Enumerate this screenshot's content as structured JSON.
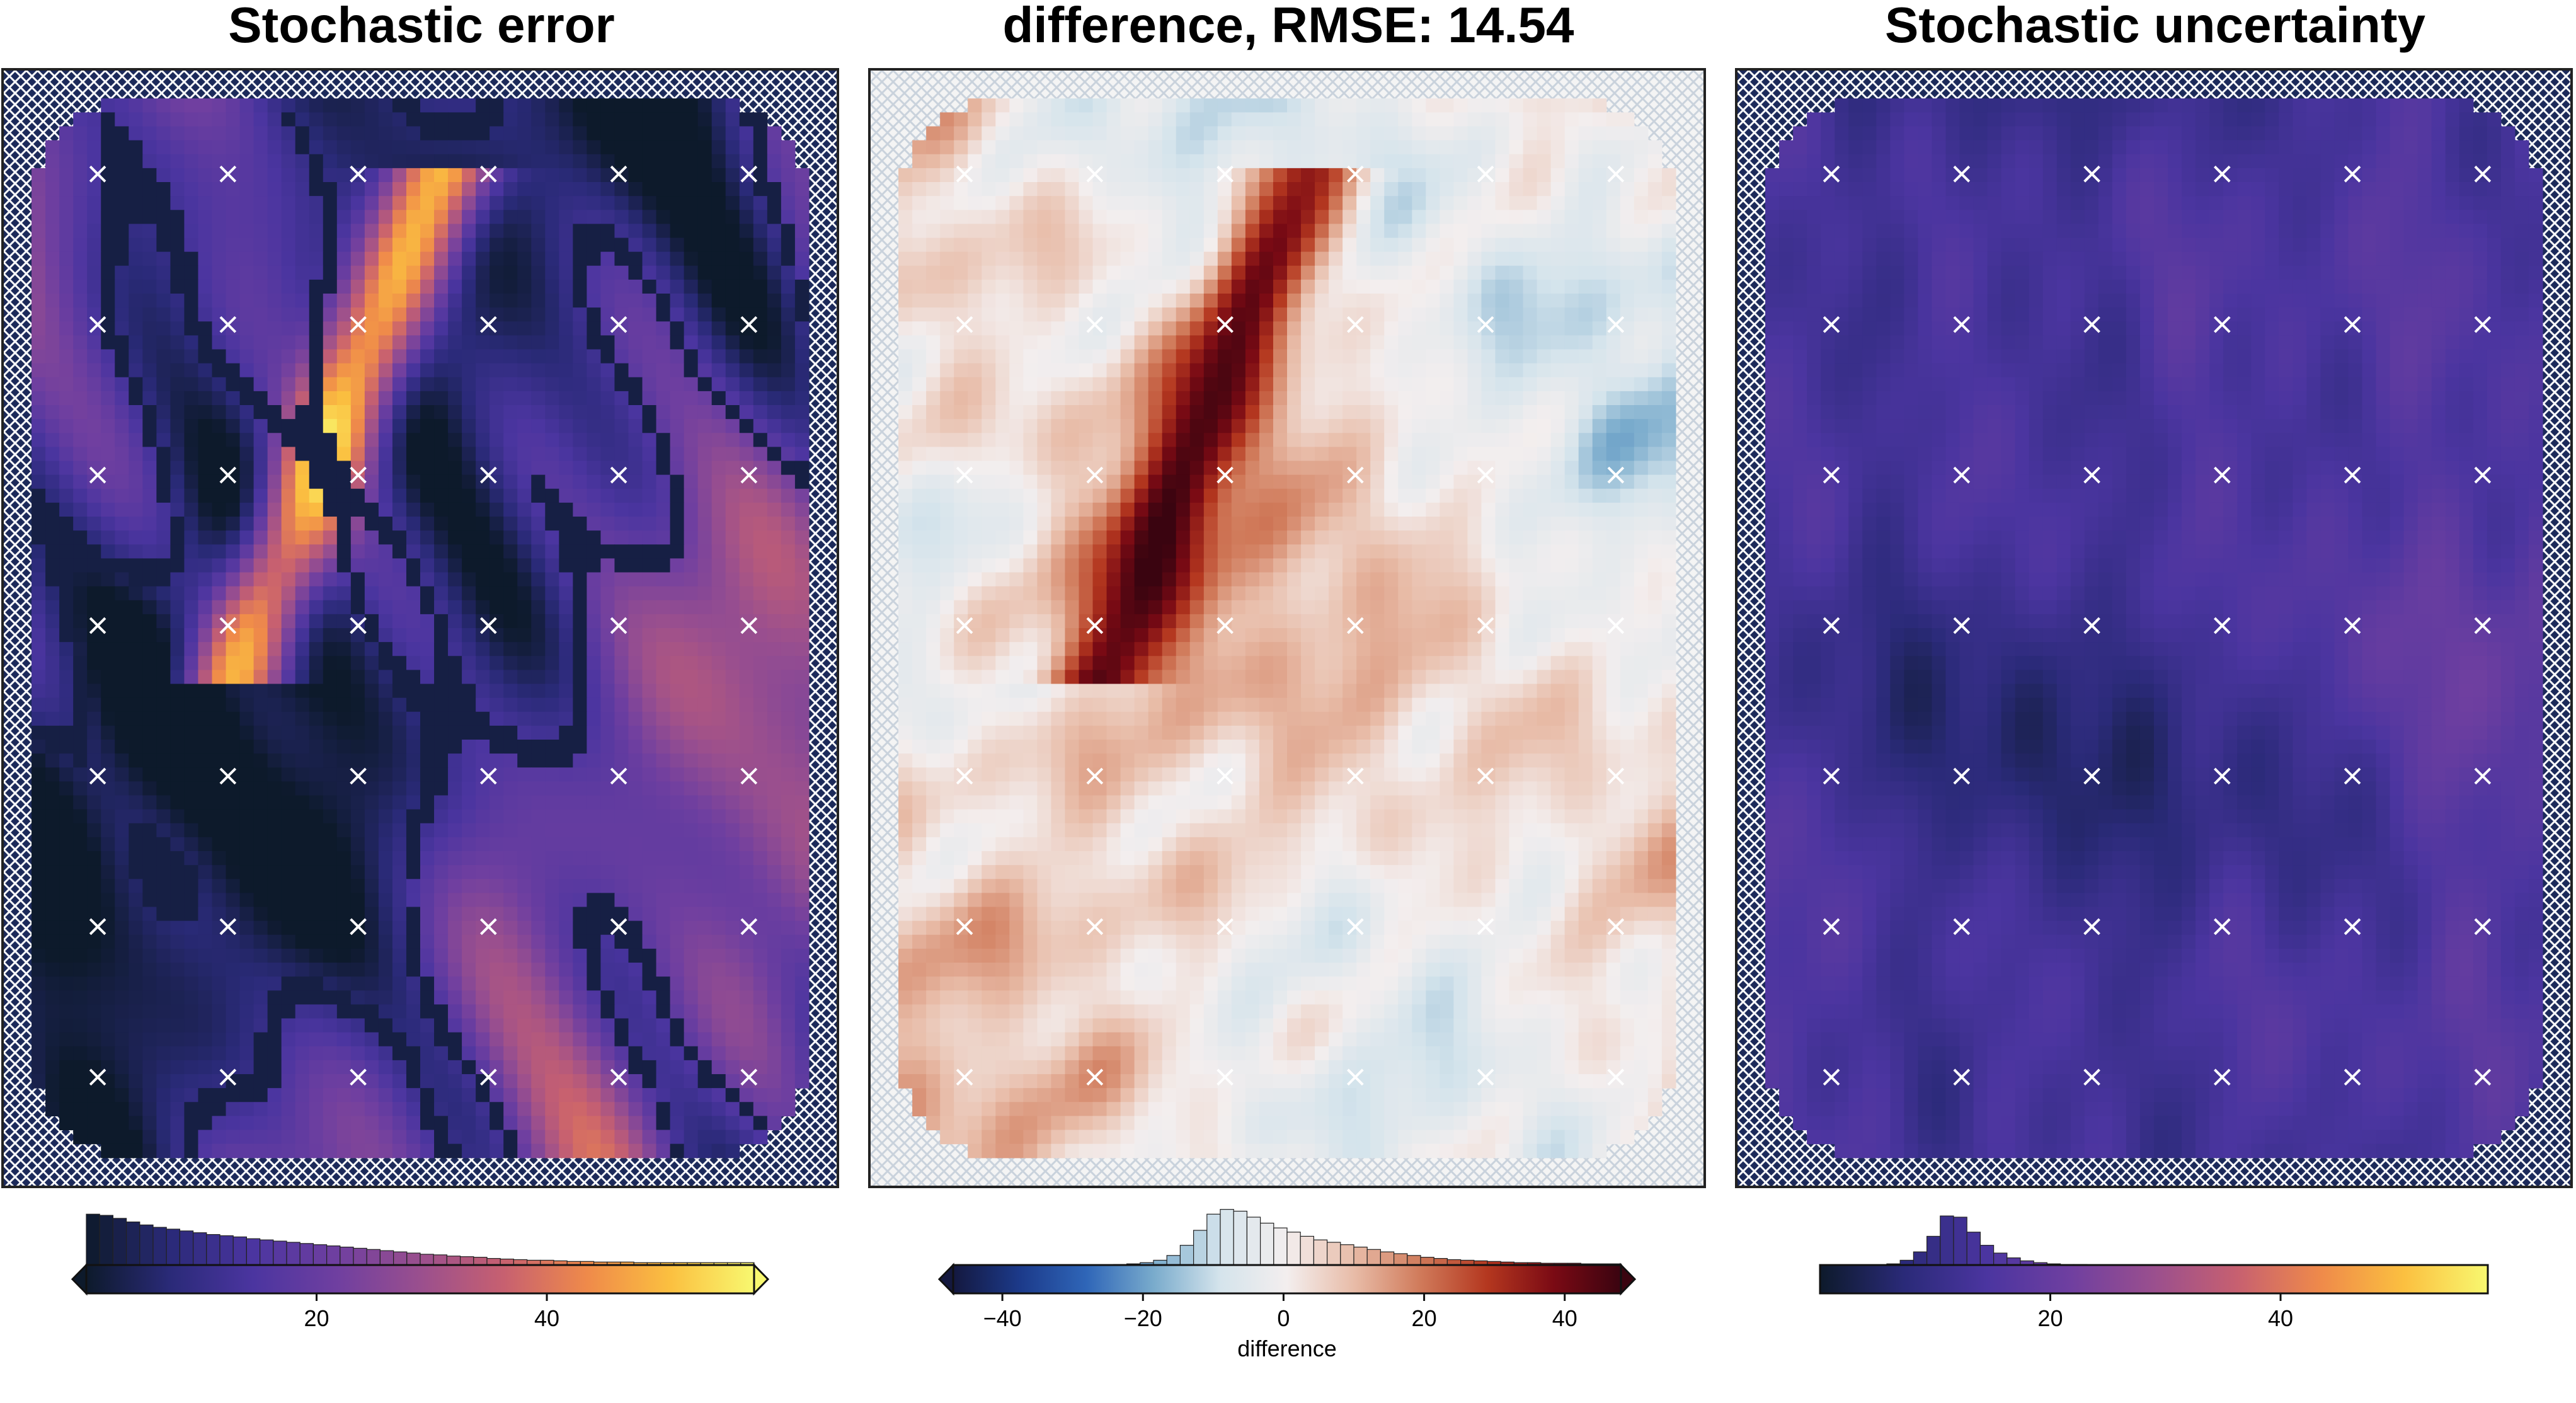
{
  "panels": [
    {
      "id": "stochastic-error",
      "title": "Stochastic error",
      "colormap": [
        "#0d1a2b",
        "#2a2a78",
        "#4b35a0",
        "#6f3fa0",
        "#9a4f8e",
        "#c76070",
        "#ef8a4a",
        "#fbc040",
        "#f8f870"
      ],
      "colorbar": {
        "vmin": 0,
        "vmax": 58,
        "ticks": [
          20,
          40
        ],
        "tick_labels": [
          "20",
          "40"
        ],
        "label": "",
        "extend": "both",
        "hist": [
          0.85,
          0.83,
          0.78,
          0.72,
          0.67,
          0.63,
          0.6,
          0.57,
          0.54,
          0.51,
          0.49,
          0.47,
          0.44,
          0.42,
          0.4,
          0.38,
          0.36,
          0.34,
          0.32,
          0.3,
          0.28,
          0.26,
          0.24,
          0.22,
          0.2,
          0.18,
          0.17,
          0.15,
          0.14,
          0.13,
          0.11,
          0.1,
          0.09,
          0.08,
          0.08,
          0.07,
          0.06,
          0.06,
          0.05,
          0.05,
          0.05,
          0.04,
          0.04,
          0.04,
          0.04,
          0.04,
          0.04,
          0.04,
          0.04,
          0.04
        ]
      }
    },
    {
      "id": "difference",
      "title": "difference, RMSE: 14.54",
      "colormap": [
        "#14183f",
        "#1c3a8a",
        "#2f66b8",
        "#79abcc",
        "#d5e4ec",
        "#f3eeee",
        "#e8bca8",
        "#d07a5a",
        "#b4371f",
        "#7a0a14",
        "#3a0410"
      ],
      "colorbar": {
        "vmin": -47,
        "vmax": 48,
        "ticks": [
          -40,
          -20,
          0,
          20,
          40
        ],
        "tick_labels": [
          "−40",
          "−20",
          "0",
          "20",
          "40"
        ],
        "label": "difference",
        "extend": "both",
        "hist": [
          0,
          0,
          0,
          0,
          0,
          0,
          0,
          0,
          0,
          0,
          0,
          0,
          0.01,
          0.02,
          0.04,
          0.08,
          0.16,
          0.33,
          0.58,
          0.85,
          0.93,
          0.9,
          0.8,
          0.7,
          0.62,
          0.55,
          0.48,
          0.42,
          0.38,
          0.34,
          0.3,
          0.26,
          0.22,
          0.19,
          0.16,
          0.13,
          0.11,
          0.09,
          0.08,
          0.07,
          0.06,
          0.05,
          0.04,
          0.04,
          0.03,
          0.03,
          0.03,
          0.02,
          0.02,
          0.02
        ]
      }
    },
    {
      "id": "stochastic-uncertainty",
      "title": "Stochastic uncertainty",
      "colormap": [
        "#0d1a2b",
        "#2a2a78",
        "#4b35a0",
        "#6f3fa0",
        "#9a4f8e",
        "#c76070",
        "#ef8a4a",
        "#fbc040",
        "#f8f870"
      ],
      "colorbar": {
        "vmin": 0,
        "vmax": 58,
        "ticks": [
          20,
          40
        ],
        "tick_labels": [
          "20",
          "40"
        ],
        "label": "",
        "extend": "neither",
        "hist": [
          0,
          0,
          0,
          0,
          0,
          0.02,
          0.08,
          0.22,
          0.48,
          0.82,
          0.8,
          0.55,
          0.33,
          0.2,
          0.12,
          0.07,
          0.04,
          0.02,
          0.01,
          0.01,
          0,
          0,
          0,
          0,
          0,
          0,
          0,
          0,
          0,
          0,
          0,
          0,
          0,
          0,
          0,
          0,
          0,
          0,
          0,
          0,
          0,
          0,
          0,
          0,
          0,
          0,
          0,
          0,
          0,
          0
        ]
      }
    }
  ]
}
